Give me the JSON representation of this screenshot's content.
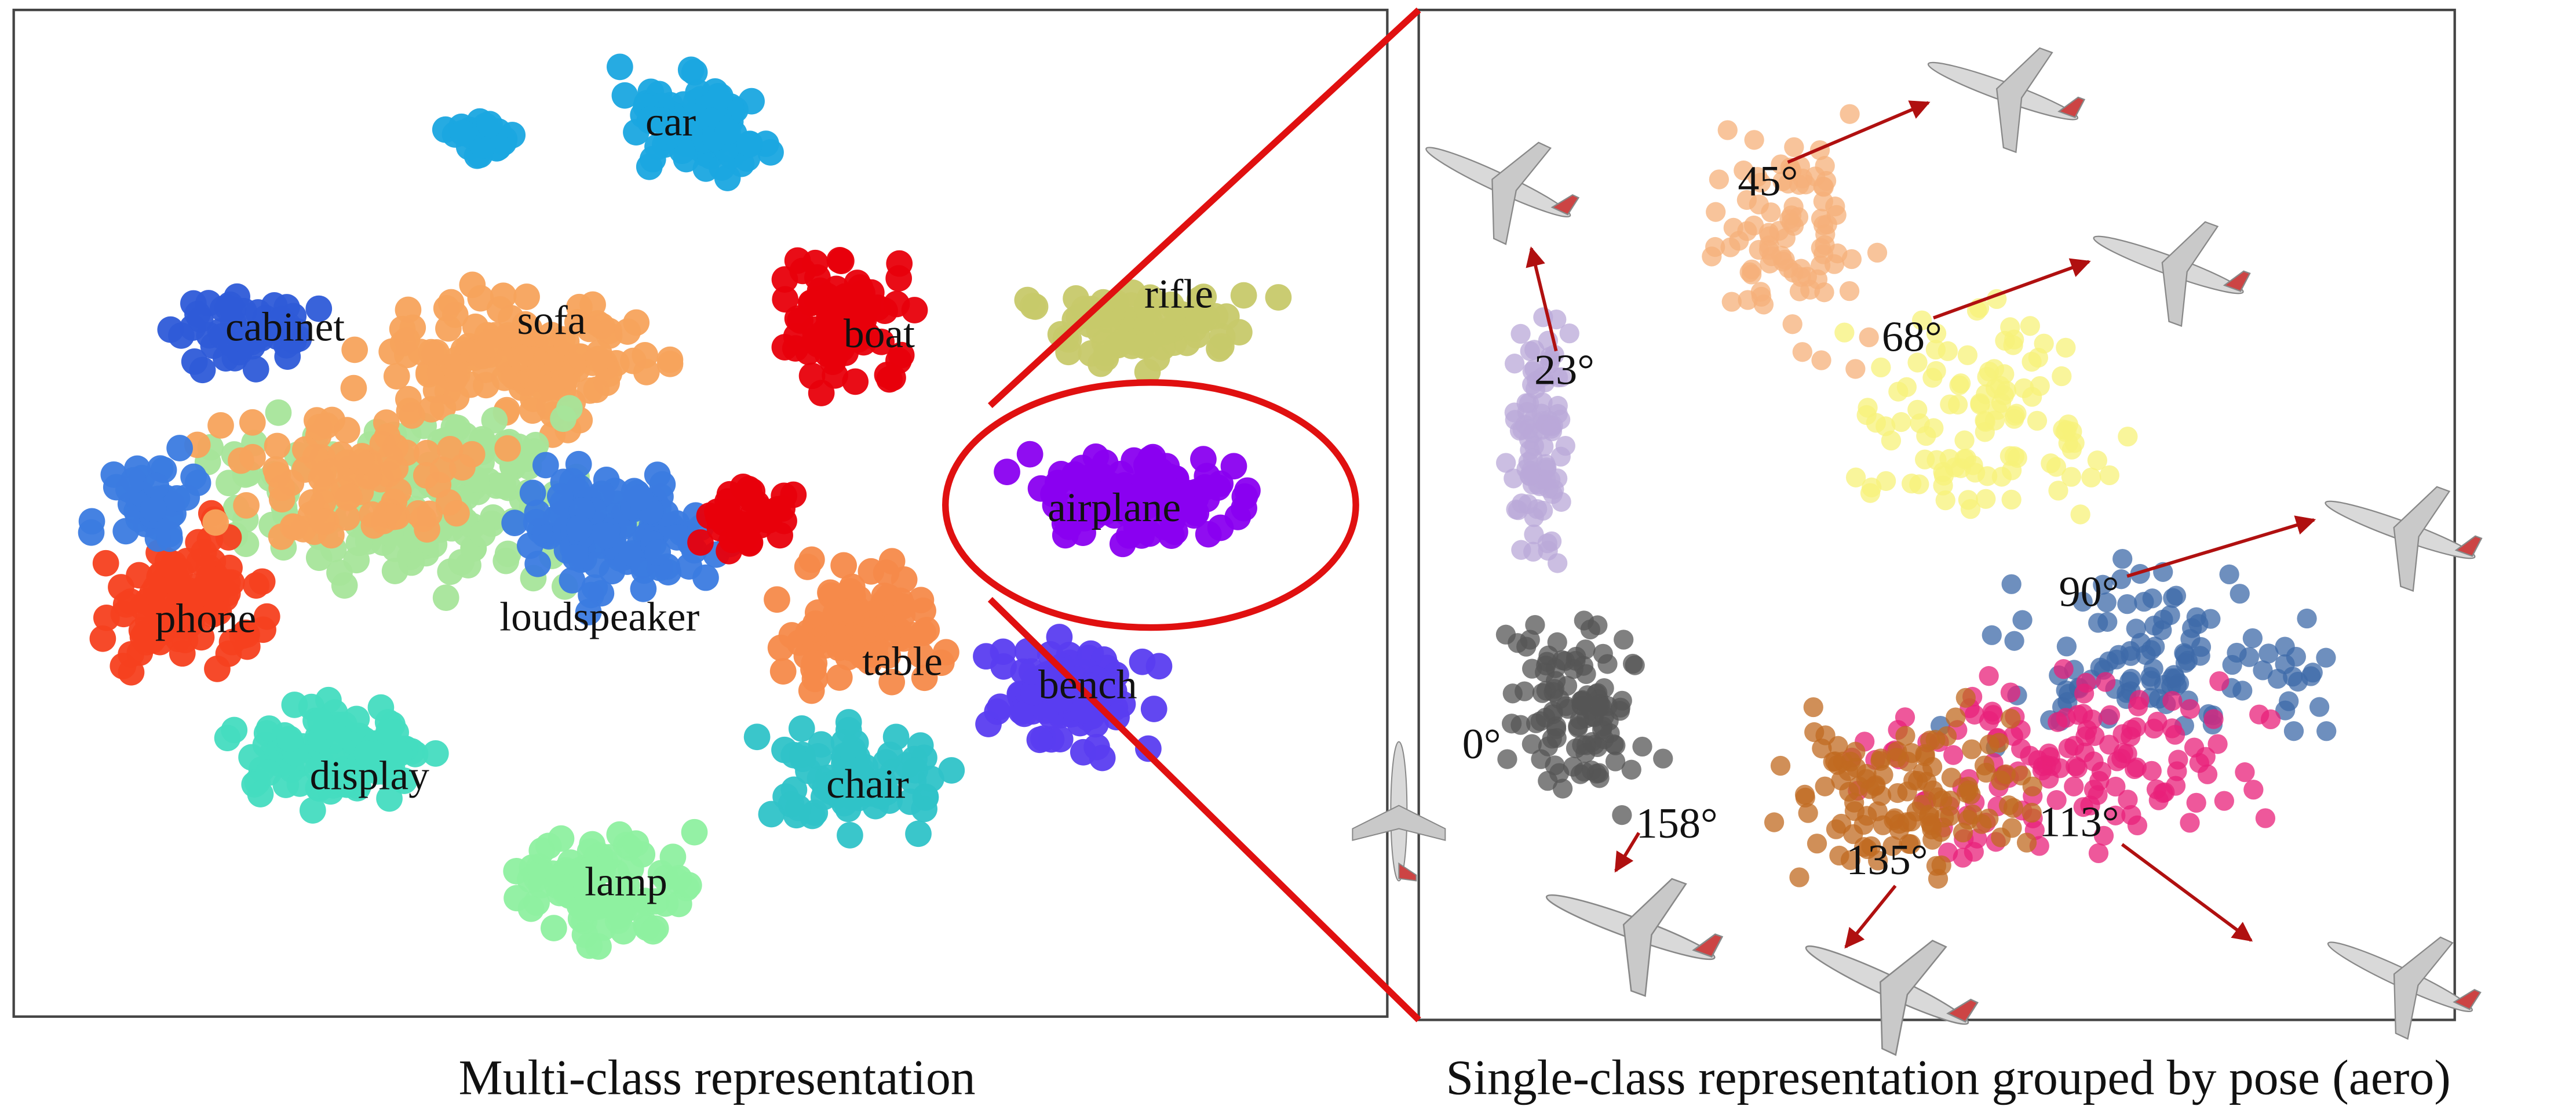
{
  "left_panel": {
    "labels": [
      "car",
      "cabinet",
      "sofa",
      "boat",
      "rifle",
      "airplane",
      "phone",
      "loudspeaker",
      "table",
      "bench",
      "display",
      "chair",
      "lamp"
    ]
  },
  "right_panel": {
    "labels": [
      "45°",
      "23°",
      "68°",
      "90°",
      "0°",
      "158°",
      "135°",
      "113°"
    ]
  },
  "captions": [
    "Multi-class representation",
    "Single-class representation grouped by pose (aero)"
  ]
}
